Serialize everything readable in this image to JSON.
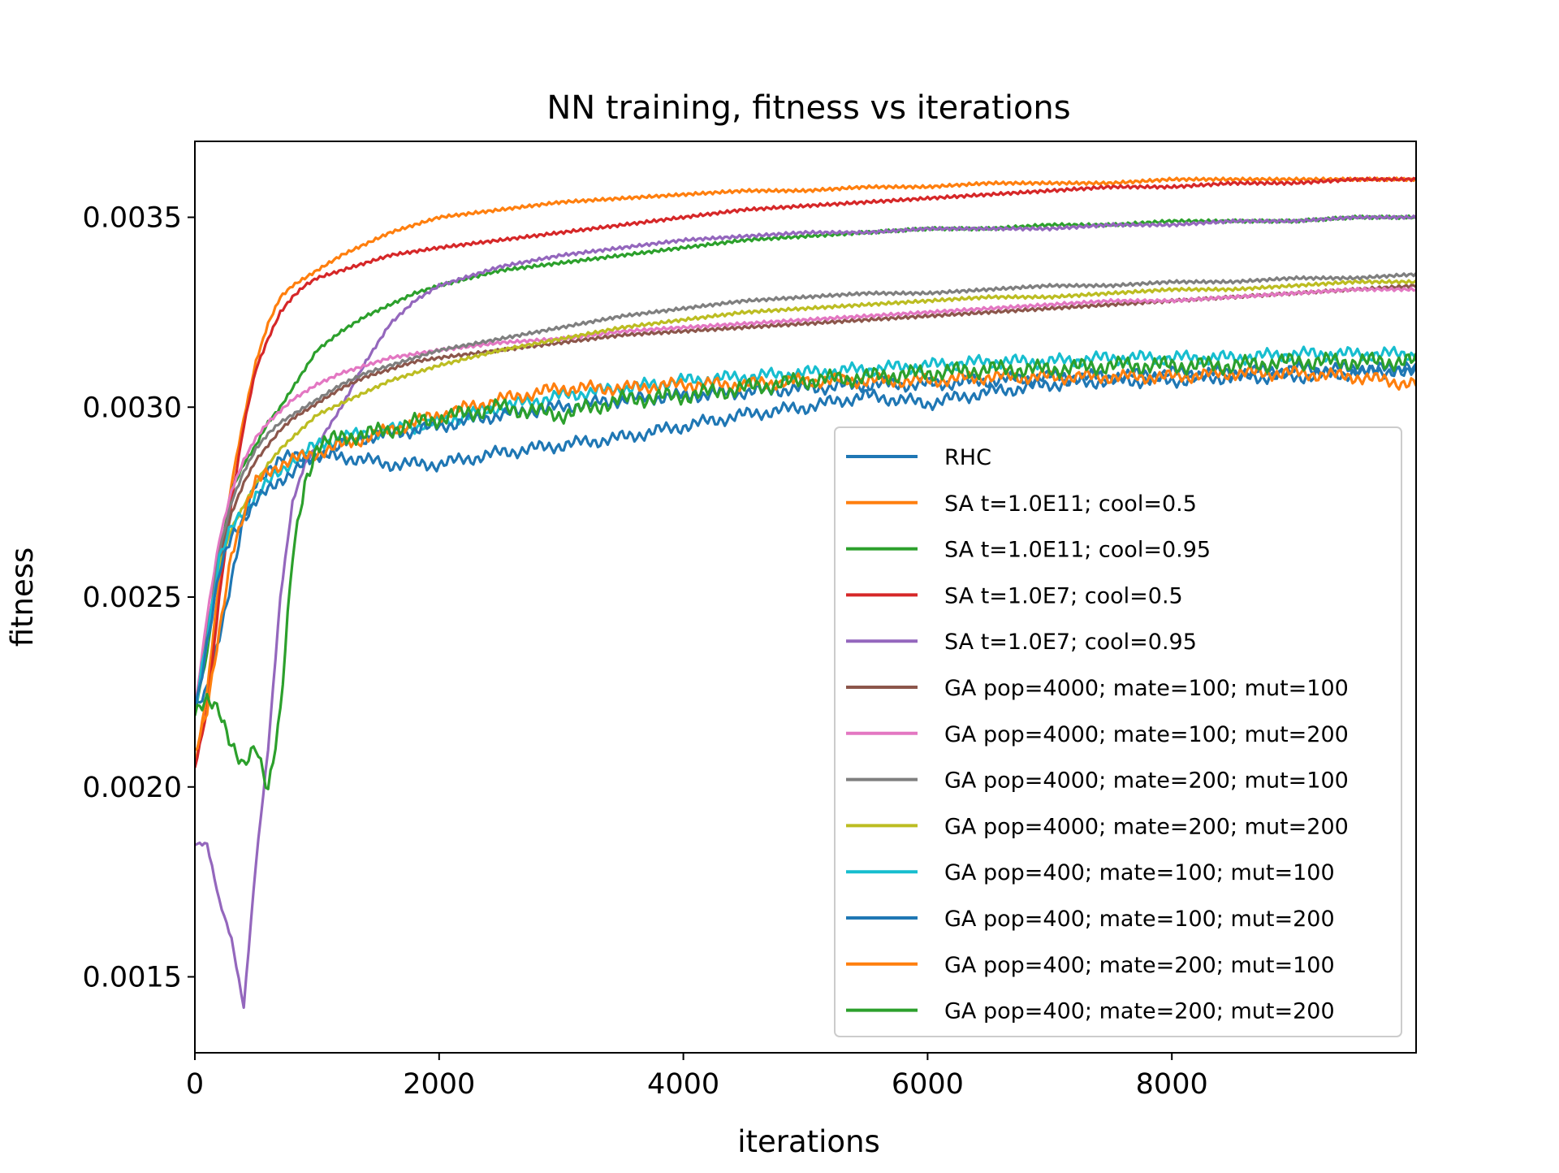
{
  "chart_data": {
    "type": "line",
    "title": "NN training, fitness vs iterations",
    "xlabel": "iterations",
    "ylabel": "fitness",
    "xlim": [
      0,
      10000
    ],
    "ylim": [
      0.0013,
      0.0037
    ],
    "x_ticks": [
      0,
      2000,
      4000,
      6000,
      8000
    ],
    "x_tick_labels": [
      "0",
      "2000",
      "4000",
      "6000",
      "8000"
    ],
    "y_ticks": [
      0.0015,
      0.002,
      0.0025,
      0.003,
      0.0035
    ],
    "y_tick_labels": [
      "0.0015",
      "0.0020",
      "0.0025",
      "0.0030",
      "0.0035"
    ],
    "grid": false,
    "legend_position": "lower-right",
    "x": [
      0,
      100,
      200,
      300,
      400,
      500,
      600,
      700,
      800,
      900,
      1000,
      1200,
      1400,
      1600,
      1800,
      2000,
      2500,
      3000,
      3500,
      4000,
      4500,
      5000,
      5500,
      6000,
      6500,
      7000,
      7500,
      8000,
      8500,
      9000,
      9500,
      10000
    ],
    "series": [
      {
        "name": "RHC",
        "color": "#1f77b4",
        "noise": 2e-05,
        "values": [
          0.0022,
          0.00225,
          0.0024,
          0.00255,
          0.0027,
          0.0028,
          0.00284,
          0.00286,
          0.00287,
          0.00287,
          0.00287,
          0.00287,
          0.00286,
          0.00285,
          0.00285,
          0.00285,
          0.00288,
          0.0029,
          0.00292,
          0.00295,
          0.00298,
          0.003,
          0.00303,
          0.00301,
          0.00304,
          0.00306,
          0.00307,
          0.00307,
          0.00308,
          0.00308,
          0.00309,
          0.0031
        ]
      },
      {
        "name": "SA t=1.0E11; cool=0.5",
        "color": "#ff7f0e",
        "noise": 0,
        "values": [
          0.00205,
          0.00225,
          0.00255,
          0.0028,
          0.00297,
          0.00312,
          0.00322,
          0.00329,
          0.00332,
          0.00334,
          0.00336,
          0.0034,
          0.00343,
          0.00346,
          0.00348,
          0.0035,
          0.00352,
          0.00354,
          0.00355,
          0.00356,
          0.00357,
          0.00357,
          0.00358,
          0.00358,
          0.00359,
          0.00359,
          0.00359,
          0.0036,
          0.0036,
          0.0036,
          0.0036,
          0.0036
        ]
      },
      {
        "name": "SA t=1.0E11; cool=0.95",
        "color": "#2ca02c",
        "noise": 0,
        "values": [
          0.0022,
          0.00235,
          0.0026,
          0.00278,
          0.00285,
          0.0029,
          0.00296,
          0.003,
          0.00305,
          0.0031,
          0.00315,
          0.0032,
          0.00324,
          0.00327,
          0.0033,
          0.00332,
          0.00336,
          0.00338,
          0.0034,
          0.00342,
          0.00344,
          0.00345,
          0.00346,
          0.00347,
          0.00347,
          0.00348,
          0.00348,
          0.00349,
          0.00349,
          0.00349,
          0.0035,
          0.0035
        ]
      },
      {
        "name": "SA t=1.0E7; cool=0.5",
        "color": "#d62728",
        "noise": 0,
        "values": [
          0.00205,
          0.0022,
          0.0025,
          0.00275,
          0.00295,
          0.0031,
          0.00318,
          0.00325,
          0.00329,
          0.00332,
          0.00334,
          0.00336,
          0.00338,
          0.0034,
          0.00341,
          0.00342,
          0.00344,
          0.00346,
          0.00348,
          0.0035,
          0.00352,
          0.00353,
          0.00354,
          0.00355,
          0.00356,
          0.00357,
          0.00358,
          0.00358,
          0.00359,
          0.00359,
          0.0036,
          0.0036
        ]
      },
      {
        "name": "SA t=1.0E7; cool=0.95",
        "color": "#9467bd",
        "noise": 0,
        "values": [
          0.00185,
          0.00185,
          0.0017,
          0.0016,
          0.00142,
          0.0018,
          0.0021,
          0.0025,
          0.00275,
          0.00285,
          0.0029,
          0.003,
          0.00312,
          0.00322,
          0.00328,
          0.00332,
          0.00337,
          0.0034,
          0.00342,
          0.00344,
          0.00345,
          0.00346,
          0.00346,
          0.00347,
          0.00347,
          0.00347,
          0.00348,
          0.00348,
          0.00349,
          0.00349,
          0.0035,
          0.0035
        ]
      },
      {
        "name": "GA pop=4000; mate=100; mut=100",
        "color": "#8c564b",
        "noise": 0,
        "values": [
          0.0022,
          0.0024,
          0.0026,
          0.00272,
          0.0028,
          0.00286,
          0.0029,
          0.00294,
          0.00297,
          0.00299,
          0.00301,
          0.00305,
          0.00308,
          0.0031,
          0.00312,
          0.00313,
          0.00315,
          0.00317,
          0.00319,
          0.0032,
          0.00321,
          0.00322,
          0.00323,
          0.00324,
          0.00325,
          0.00326,
          0.00327,
          0.00328,
          0.00329,
          0.0033,
          0.00331,
          0.00332
        ]
      },
      {
        "name": "GA pop=4000; mate=100; mut=200",
        "color": "#e377c2",
        "noise": 0,
        "values": [
          0.0022,
          0.00245,
          0.00265,
          0.00278,
          0.00286,
          0.00292,
          0.00296,
          0.00299,
          0.00302,
          0.00304,
          0.00306,
          0.00309,
          0.00311,
          0.00313,
          0.00314,
          0.00315,
          0.00317,
          0.00318,
          0.0032,
          0.00321,
          0.00322,
          0.00323,
          0.00324,
          0.00325,
          0.00326,
          0.00327,
          0.00328,
          0.00328,
          0.00329,
          0.0033,
          0.00331,
          0.00331
        ]
      },
      {
        "name": "GA pop=4000; mate=200; mut=100",
        "color": "#7f7f7f",
        "noise": 0,
        "values": [
          0.0022,
          0.0024,
          0.00262,
          0.00275,
          0.00283,
          0.00289,
          0.00293,
          0.00296,
          0.00298,
          0.003,
          0.00302,
          0.00306,
          0.00309,
          0.00311,
          0.00313,
          0.00315,
          0.00318,
          0.00321,
          0.00324,
          0.00326,
          0.00328,
          0.00329,
          0.0033,
          0.0033,
          0.00331,
          0.00332,
          0.00332,
          0.00333,
          0.00333,
          0.00334,
          0.00334,
          0.00335
        ]
      },
      {
        "name": "GA pop=4000; mate=200; mut=200",
        "color": "#bcbd22",
        "noise": 0,
        "values": [
          0.0022,
          0.00238,
          0.00258,
          0.00268,
          0.00274,
          0.0028,
          0.00285,
          0.00289,
          0.00292,
          0.00295,
          0.00298,
          0.00301,
          0.00304,
          0.00307,
          0.00309,
          0.00311,
          0.00315,
          0.00318,
          0.00321,
          0.00323,
          0.00325,
          0.00326,
          0.00327,
          0.00328,
          0.00329,
          0.00329,
          0.0033,
          0.00331,
          0.00331,
          0.00332,
          0.00333,
          0.00333
        ]
      },
      {
        "name": "GA pop=400; mate=100; mut=100",
        "color": "#17becf",
        "noise": 2e-05,
        "values": [
          0.0022,
          0.0024,
          0.0026,
          0.00268,
          0.00273,
          0.00277,
          0.0028,
          0.00283,
          0.00286,
          0.00288,
          0.0029,
          0.00292,
          0.00293,
          0.00294,
          0.00295,
          0.00296,
          0.003,
          0.00303,
          0.00305,
          0.00307,
          0.00308,
          0.00309,
          0.0031,
          0.00311,
          0.00312,
          0.00312,
          0.00313,
          0.00313,
          0.00313,
          0.00314,
          0.00314,
          0.00314
        ]
      },
      {
        "name": "GA pop=400; mate=100; mut=200",
        "color": "#1f77b4",
        "noise": 2e-05,
        "values": [
          0.0022,
          0.00238,
          0.00256,
          0.00266,
          0.00271,
          0.00275,
          0.00278,
          0.00281,
          0.00283,
          0.00285,
          0.00287,
          0.0029,
          0.00292,
          0.00293,
          0.00294,
          0.00295,
          0.00298,
          0.003,
          0.00302,
          0.00303,
          0.00304,
          0.00305,
          0.00306,
          0.00306,
          0.00307,
          0.00308,
          0.00308,
          0.00309,
          0.00309,
          0.0031,
          0.0031,
          0.0031
        ]
      },
      {
        "name": "GA pop=400; mate=200; mut=100",
        "color": "#ff7f0e",
        "noise": 2e-05,
        "values": [
          0.0021,
          0.0022,
          0.0024,
          0.00262,
          0.00272,
          0.0028,
          0.00283,
          0.00285,
          0.00286,
          0.00287,
          0.00288,
          0.0029,
          0.00292,
          0.00294,
          0.00296,
          0.00298,
          0.00302,
          0.00305,
          0.00305,
          0.00306,
          0.00306,
          0.00307,
          0.00307,
          0.00307,
          0.00308,
          0.00308,
          0.00308,
          0.00308,
          0.00309,
          0.00309,
          0.00308,
          0.00306
        ]
      },
      {
        "name": "GA pop=400; mate=200; mut=200",
        "color": "#2ca02c",
        "noise": 2.5e-05,
        "values": [
          0.0022,
          0.00222,
          0.0022,
          0.00212,
          0.00205,
          0.0021,
          0.002,
          0.0022,
          0.0026,
          0.0028,
          0.0029,
          0.00292,
          0.00293,
          0.00294,
          0.00296,
          0.00297,
          0.003,
          0.00298,
          0.00302,
          0.00303,
          0.00305,
          0.00307,
          0.00308,
          0.00309,
          0.0031,
          0.0031,
          0.00311,
          0.00311,
          0.00311,
          0.00312,
          0.00312,
          0.00312
        ]
      }
    ]
  }
}
